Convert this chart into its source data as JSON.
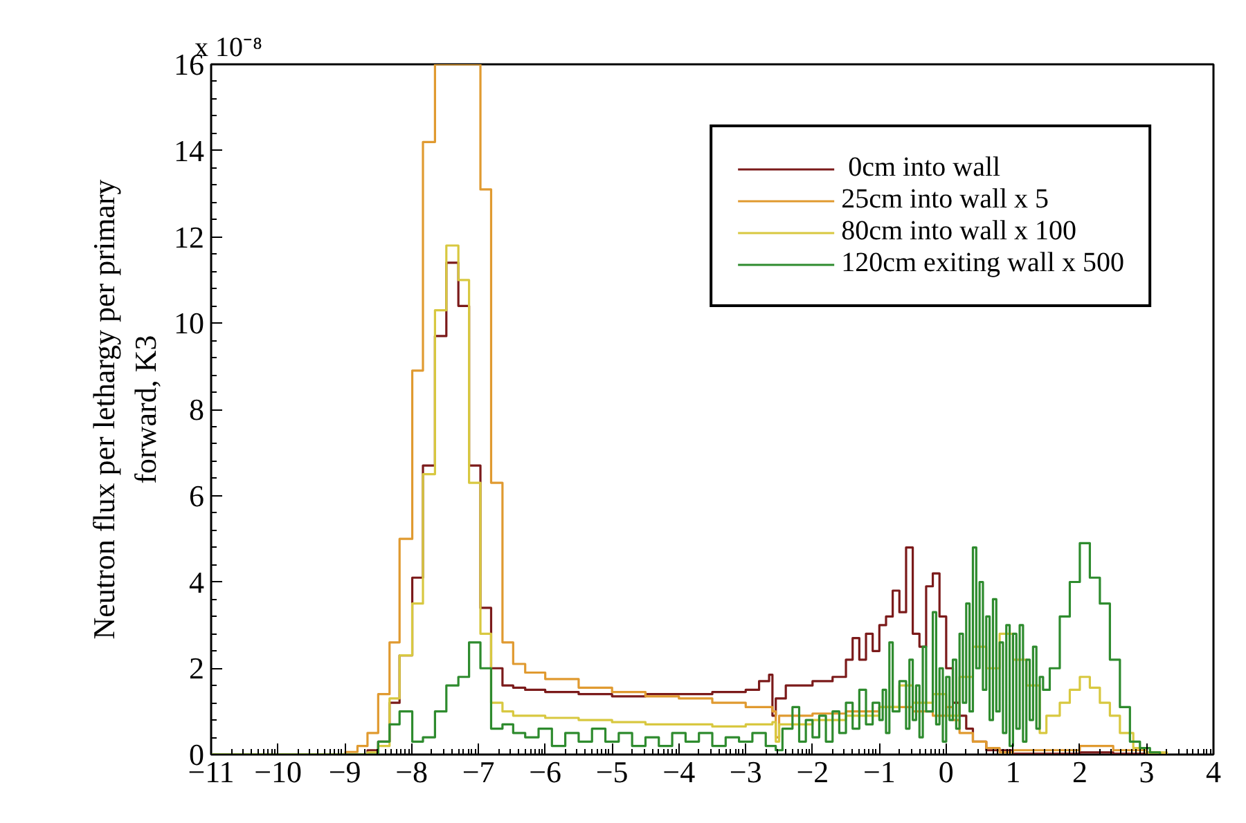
{
  "chart_data": {
    "type": "step",
    "ylabel": "Neutron flux per lethargy per primary\nforward, K3",
    "annotations": [
      "x 10⁻⁸"
    ],
    "xlim": [
      -11,
      4
    ],
    "xticks": [
      -11,
      -10,
      -9,
      -8,
      -7,
      -6,
      -5,
      -4,
      -3,
      -2,
      -1,
      0,
      1,
      2,
      3,
      4
    ],
    "ylim": [
      0,
      16
    ],
    "yticks": [
      0,
      2,
      4,
      6,
      8,
      10,
      12,
      14,
      16
    ],
    "grid": false,
    "legend": "top right",
    "line_style": "solid",
    "marker": "none",
    "series": [
      {
        "name": " 0cm into wall",
        "color": "#7b1a1a",
        "x": [
          -11,
          -8.66,
          -8.5,
          -8.33,
          -8.18,
          -7.99,
          -7.83,
          -7.65,
          -7.48,
          -7.3,
          -7.14,
          -6.97,
          -6.81,
          -6.64,
          -6.48,
          -6.3,
          -6,
          -5.5,
          -5,
          -4.5,
          -4,
          -3.5,
          -3,
          -2.8,
          -2.65,
          -2.6,
          -2.55,
          -2.4,
          -2,
          -1.7,
          -1.5,
          -1.4,
          -1.3,
          -1.2,
          -1.1,
          -1.0,
          -0.9,
          -0.8,
          -0.7,
          -0.6,
          -0.5,
          -0.4,
          -0.3,
          -0.2,
          -0.1,
          0,
          0.1,
          0.2,
          0.3,
          0.4,
          0.6,
          1.0,
          2.0,
          2.5,
          3.0
        ],
        "values": [
          0,
          0.1,
          0.3,
          1.2,
          2.3,
          4.1,
          6.7,
          9.7,
          11.4,
          10.4,
          6.7,
          3.4,
          2.0,
          1.6,
          1.55,
          1.5,
          1.45,
          1.4,
          1.35,
          1.4,
          1.4,
          1.45,
          1.5,
          1.7,
          1.85,
          0.9,
          1.3,
          1.6,
          1.7,
          1.8,
          2.2,
          2.7,
          2.2,
          2.8,
          2.4,
          3.0,
          3.2,
          3.8,
          3.3,
          4.8,
          2.8,
          2.5,
          3.9,
          4.2,
          3.2,
          2.0,
          1.2,
          0.9,
          0.6,
          0.3,
          0.1,
          0.02,
          0.05,
          0.02,
          0
        ]
      },
      {
        "name": "25cm into wall x 5",
        "color": "#e09a30",
        "x": [
          -11,
          -8.99,
          -8.81,
          -8.66,
          -8.5,
          -8.33,
          -8.18,
          -7.99,
          -7.83,
          -7.65,
          -6.97,
          -6.81,
          -6.64,
          -6.48,
          -6.3,
          -6,
          -5.5,
          -5,
          -4.5,
          -4,
          -3.5,
          -3,
          -2.6,
          -2.55,
          -2.5,
          -2,
          -1.5,
          -1,
          -0.5,
          -0.2,
          0,
          0.1,
          0.2,
          0.4,
          0.6,
          0.8,
          1.0,
          1.5,
          2.0,
          2.5,
          3.0,
          3.3
        ],
        "values": [
          0,
          0.06,
          0.2,
          0.5,
          1.4,
          2.6,
          5.0,
          8.9,
          14.2,
          16,
          13.1,
          6.3,
          2.6,
          2.1,
          1.9,
          1.75,
          1.55,
          1.45,
          1.35,
          1.3,
          1.2,
          1.1,
          1.0,
          0.4,
          0.9,
          0.95,
          1.0,
          1.1,
          1.0,
          0.9,
          1.1,
          0.8,
          0.5,
          0.3,
          0.15,
          0.05,
          0.1,
          0.1,
          0.2,
          0.1,
          0.03,
          0
        ]
      },
      {
        "name": "80cm into wall x 100",
        "color": "#d8c840",
        "x": [
          -11,
          -8.66,
          -8.5,
          -8.33,
          -8.18,
          -7.99,
          -7.83,
          -7.65,
          -7.48,
          -7.3,
          -7.14,
          -6.97,
          -6.81,
          -6.64,
          -6.48,
          -6,
          -5.5,
          -5,
          -4.5,
          -4,
          -3.5,
          -3,
          -2.6,
          -2.55,
          -2.5,
          -2,
          -1.5,
          -1,
          -0.7,
          -0.5,
          -0.2,
          0,
          0.2,
          0.4,
          0.6,
          0.8,
          1.0,
          1.2,
          1.4,
          1.5,
          1.7,
          1.85,
          2.0,
          2.15,
          2.3,
          2.45,
          2.6,
          2.8,
          3.0,
          3.3
        ],
        "values": [
          0,
          0.05,
          0.2,
          1.3,
          2.3,
          3.5,
          6.5,
          10.3,
          11.8,
          11.0,
          6.3,
          2.8,
          1.2,
          1.0,
          0.9,
          0.85,
          0.8,
          0.75,
          0.7,
          0.7,
          0.65,
          0.7,
          0.75,
          0.3,
          0.7,
          0.8,
          0.9,
          1.1,
          1.6,
          1.2,
          1.4,
          0.9,
          1.8,
          2.5,
          2.0,
          2.8,
          2.2,
          1.6,
          0.5,
          0.9,
          1.2,
          1.5,
          1.8,
          1.55,
          1.2,
          0.9,
          0.5,
          0.15,
          0.05,
          0
        ]
      },
      {
        "name": "120cm exiting wall x 500",
        "color": "#2e8b2e",
        "x": [
          -11,
          -8.5,
          -8.33,
          -8.18,
          -7.99,
          -7.83,
          -7.65,
          -7.48,
          -7.3,
          -7.14,
          -6.97,
          -6.81,
          -6.64,
          -6.48,
          -6.3,
          -6.1,
          -5.9,
          -5.7,
          -5.5,
          -5.3,
          -5.1,
          -4.9,
          -4.7,
          -4.5,
          -4.3,
          -4.1,
          -3.9,
          -3.7,
          -3.5,
          -3.3,
          -3.1,
          -2.9,
          -2.7,
          -2.55,
          -2.45,
          -2.3,
          -2.2,
          -2.1,
          -2.0,
          -1.9,
          -1.8,
          -1.7,
          -1.6,
          -1.5,
          -1.4,
          -1.3,
          -1.2,
          -1.1,
          -1.0,
          -0.95,
          -0.9,
          -0.85,
          -0.8,
          -0.7,
          -0.6,
          -0.55,
          -0.5,
          -0.45,
          -0.4,
          -0.35,
          -0.3,
          -0.2,
          -0.15,
          -0.1,
          -0.05,
          0,
          0.05,
          0.1,
          0.15,
          0.2,
          0.25,
          0.3,
          0.35,
          0.4,
          0.45,
          0.5,
          0.55,
          0.6,
          0.65,
          0.7,
          0.75,
          0.8,
          0.85,
          0.9,
          0.95,
          1.0,
          1.05,
          1.1,
          1.15,
          1.2,
          1.25,
          1.3,
          1.35,
          1.4,
          1.45,
          1.55,
          1.7,
          1.85,
          2.0,
          2.15,
          2.3,
          2.45,
          2.6,
          2.75,
          2.9,
          3.05,
          3.2
        ],
        "values": [
          0,
          0.3,
          0.7,
          1.0,
          0.3,
          0.4,
          1.0,
          1.6,
          1.8,
          2.6,
          2.0,
          0.6,
          0.7,
          0.5,
          0.4,
          0.6,
          0.2,
          0.5,
          0.3,
          0.6,
          0.3,
          0.5,
          0.2,
          0.4,
          0.2,
          0.5,
          0.3,
          0.5,
          0.2,
          0.4,
          0.3,
          0.5,
          0.2,
          0.1,
          0.6,
          1.1,
          0.3,
          0.8,
          0.4,
          0.9,
          0.3,
          1.0,
          0.5,
          1.2,
          0.6,
          1.5,
          0.7,
          1.2,
          0.8,
          1.5,
          0.5,
          2.6,
          1.0,
          1.7,
          0.6,
          2.2,
          0.8,
          1.6,
          0.4,
          2.5,
          1.0,
          3.3,
          0.7,
          2.0,
          0.3,
          1.8,
          0.8,
          2.2,
          0.6,
          2.8,
          1.2,
          3.5,
          1.0,
          4.8,
          2.0,
          4.0,
          1.5,
          3.2,
          0.8,
          3.6,
          1.0,
          2.6,
          0.5,
          3.0,
          0.2,
          2.8,
          0.6,
          3.0,
          0.3,
          2.2,
          0.8,
          2.5,
          0.6,
          1.8,
          1.5,
          2.0,
          3.2,
          4.0,
          4.9,
          4.1,
          3.5,
          2.2,
          1.1,
          0.3,
          0.15,
          0.05,
          0
        ]
      }
    ]
  }
}
